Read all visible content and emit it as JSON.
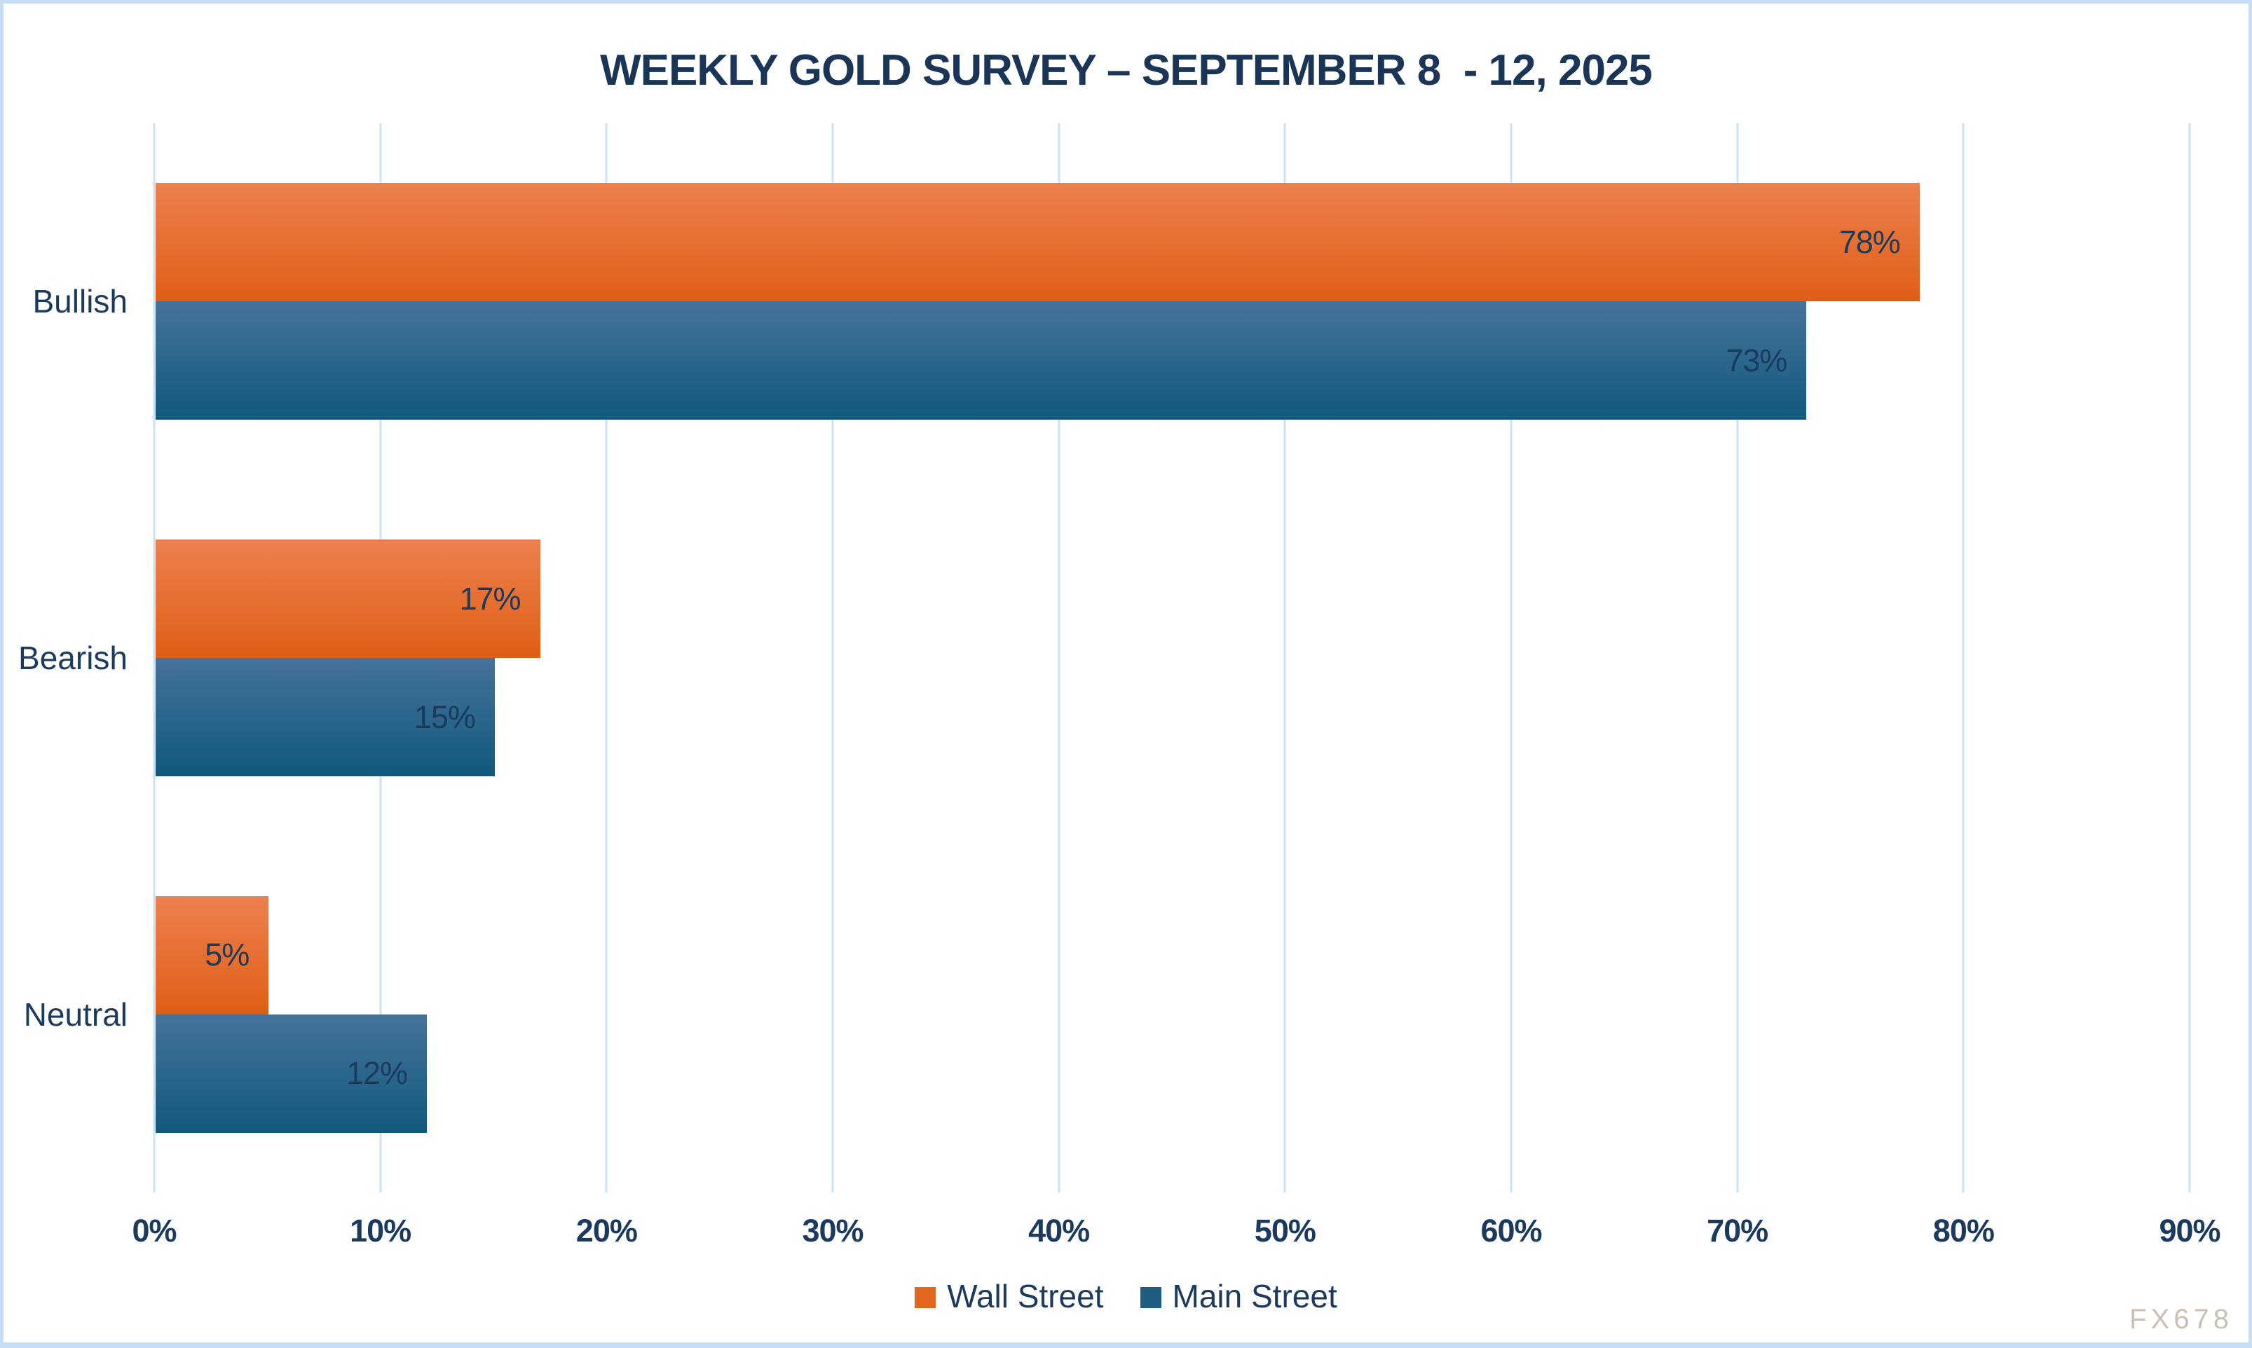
{
  "watermark": "FX678",
  "colors": {
    "background": "#ffffff",
    "frame_border": "#c7ddf4",
    "gridline": "#cde0f4",
    "text_navy": "#1c3a5e",
    "title_navy": "#1b3557",
    "watermark_gray": "#c9c1b6",
    "wall_street_orange": "#e3661f",
    "main_street_blue": "#1f5d81"
  },
  "chart_data": {
    "type": "bar",
    "orientation": "horizontal",
    "title": "WEEKLY GOLD SURVEY – SEPTEMBER 8  - 12, 2025",
    "categories": [
      "Bullish",
      "Bearish",
      "Neutral"
    ],
    "series": [
      {
        "name": "Wall Street",
        "values": [
          78,
          17,
          5
        ],
        "gradient_top": "#ec8050",
        "gradient_bottom": "#e05e14",
        "legend_color": "#e3661f"
      },
      {
        "name": "Main Street",
        "values": [
          73,
          15,
          12
        ],
        "gradient_top": "#47739a",
        "gradient_bottom": "#10597e",
        "legend_color": "#1f5d81"
      }
    ],
    "value_suffix": "%",
    "data_label_position": "inside-end",
    "x_ticks": [
      "0%",
      "10%",
      "20%",
      "30%",
      "40%",
      "50%",
      "60%",
      "70%",
      "80%",
      "90%"
    ],
    "xlim": [
      0,
      90
    ],
    "xlabel": "",
    "ylabel": "",
    "grid": "vertical",
    "legend_position": "bottom"
  }
}
